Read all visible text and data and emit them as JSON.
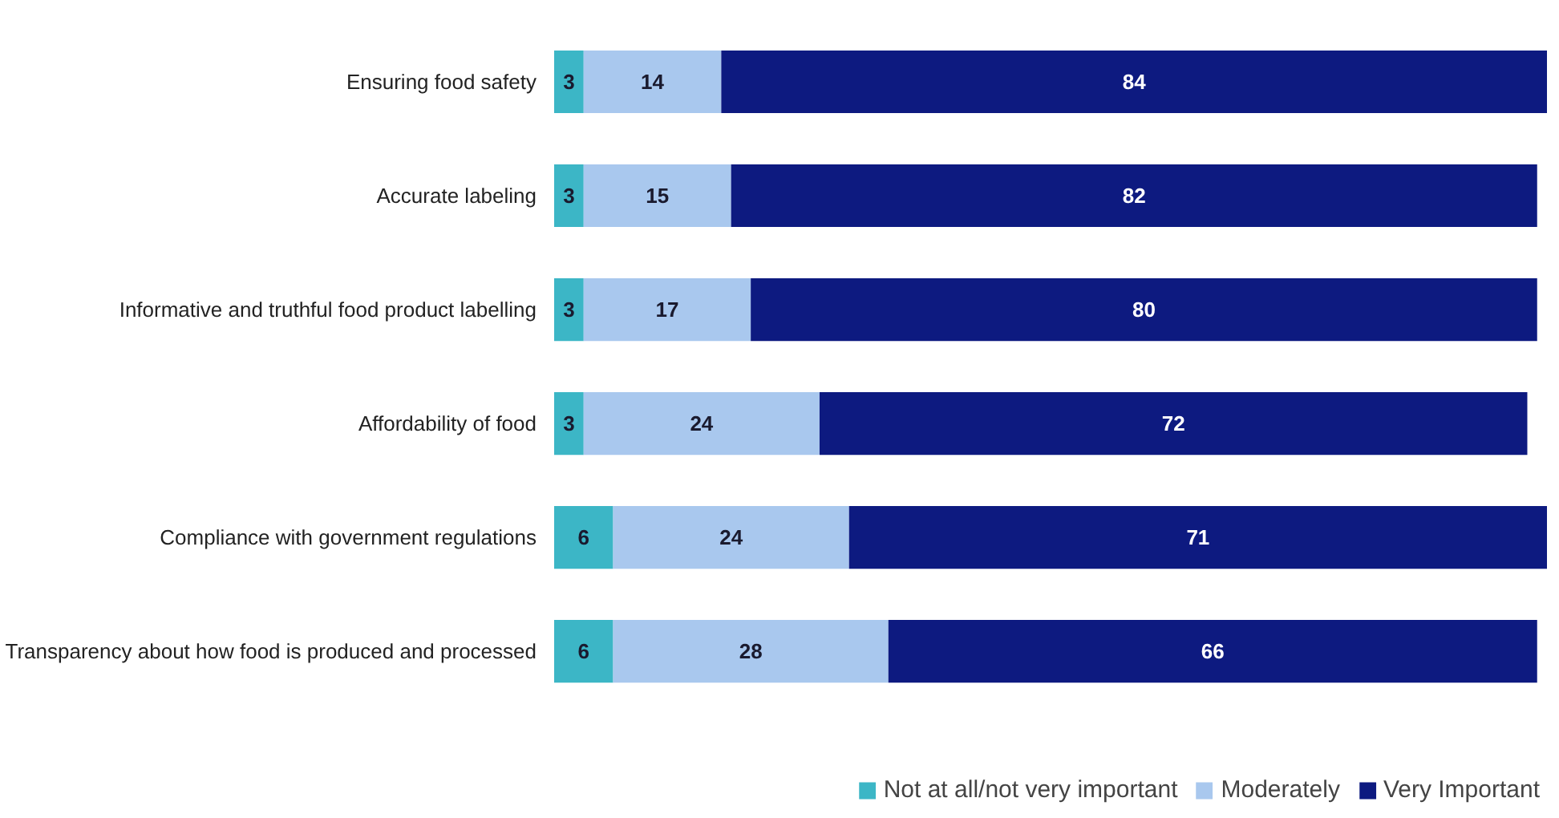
{
  "chart_data": {
    "type": "bar",
    "orientation": "horizontal",
    "stacked": true,
    "data_labels": true,
    "legend": "bottom right",
    "grid": false,
    "categories": [
      "Ensuring food safety",
      "Accurate labeling",
      "Informative and truthful food product labelling",
      "Affordability of food",
      "Compliance with government regulations",
      "Transparency about how food is produced and processed"
    ],
    "series": [
      {
        "name": "Not at all/not very important",
        "color": "#3cb6c6",
        "values": [
          3,
          3,
          3,
          3,
          6,
          6
        ]
      },
      {
        "name": "Moderately",
        "color": "#a9c8ee",
        "values": [
          14,
          15,
          17,
          24,
          24,
          28
        ]
      },
      {
        "name": "Very Important",
        "color": "#0d1a80",
        "values": [
          84,
          82,
          80,
          72,
          71,
          66
        ]
      }
    ]
  }
}
